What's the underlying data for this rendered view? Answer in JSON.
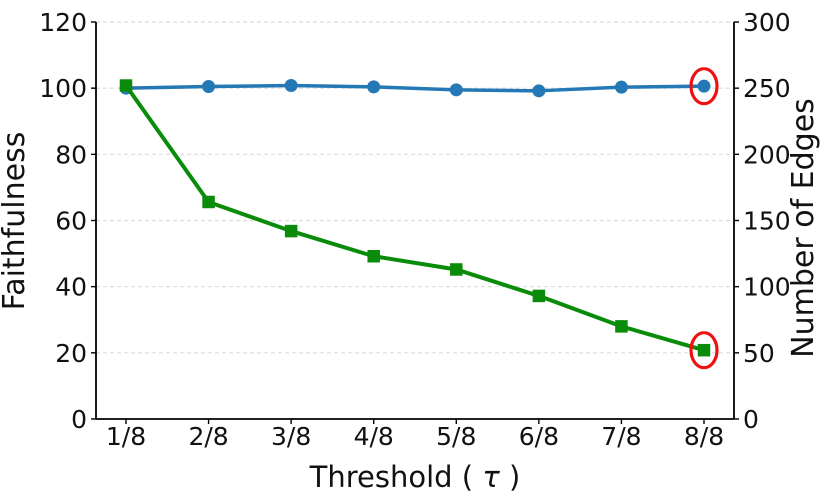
{
  "chart_data": {
    "type": "line",
    "title": "",
    "x_categories": [
      "1/8",
      "2/8",
      "3/8",
      "4/8",
      "5/8",
      "6/8",
      "7/8",
      "8/8"
    ],
    "xlabel": "Threshold (τ)",
    "xlabel_parts": [
      "Threshold (",
      "τ",
      ")"
    ],
    "y_left": {
      "label": "Faithfulness",
      "color": "#2e86c8",
      "min": 0,
      "max": 120,
      "ticks": [
        0,
        20,
        40,
        60,
        80,
        100,
        120
      ]
    },
    "y_right": {
      "label": "Number of Edges",
      "color": "#0a9a0a",
      "min": 0,
      "max": 300,
      "ticks": [
        0,
        50,
        100,
        150,
        200,
        250,
        300
      ]
    },
    "grid": true,
    "grid_color": "#dcdcdc",
    "axis_color": "#000000",
    "annotation_color": "#ee1111",
    "legend": "none",
    "series": [
      {
        "name": "Faithfulness",
        "axis": "left",
        "color": "#2478b5",
        "marker": "circle",
        "line_width": 3.5,
        "values": [
          100.0,
          100.5,
          100.8,
          100.4,
          99.5,
          99.2,
          100.3,
          100.6
        ]
      },
      {
        "name": "Number of Edges",
        "axis": "right",
        "color": "#0a8c0a",
        "marker": "square",
        "line_width": 4,
        "values": [
          252,
          164,
          142,
          123,
          113,
          93,
          70,
          52
        ]
      }
    ],
    "annotations": [
      {
        "type": "ellipse",
        "series": "Faithfulness",
        "x": "8/8"
      },
      {
        "type": "ellipse",
        "series": "Number of Edges",
        "x": "8/8"
      }
    ]
  }
}
